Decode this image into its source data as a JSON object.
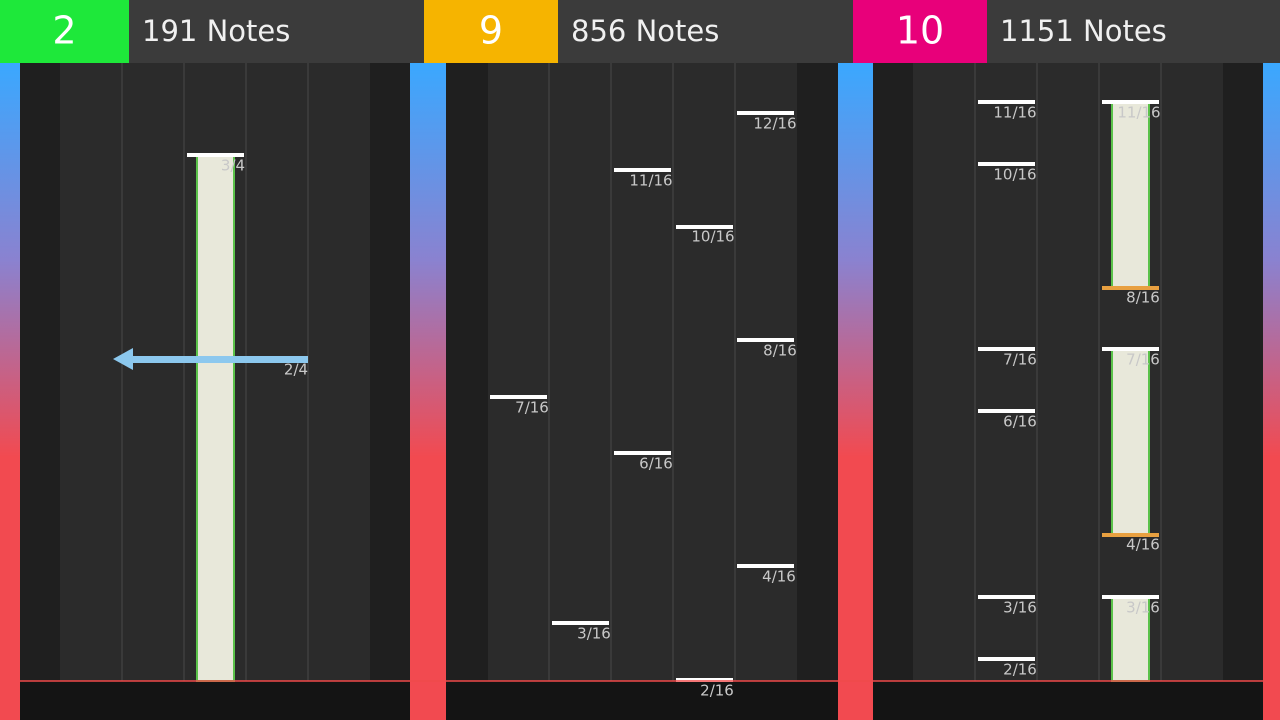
{
  "panels": [
    {
      "level": 2,
      "notes": "191 Notes",
      "labels": [
        "3/4",
        "2/4"
      ]
    },
    {
      "level": 9,
      "notes": "856 Notes",
      "labels": [
        "12/16",
        "11/16",
        "10/16",
        "8/16",
        "7/16",
        "6/16",
        "4/16",
        "3/16",
        "2/16"
      ]
    },
    {
      "level": 10,
      "notes": "1151 Notes",
      "labels": [
        "11/16",
        "10/16",
        "7/16",
        "6/16",
        "3/16",
        "2/16",
        "11/16",
        "8/16",
        "7/16",
        "4/16",
        "3/16"
      ]
    }
  ]
}
